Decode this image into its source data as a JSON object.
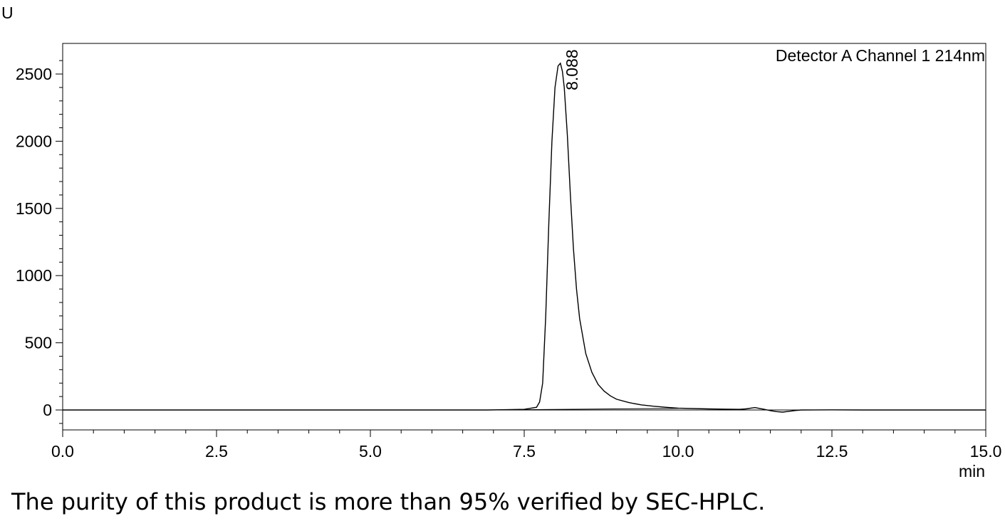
{
  "chart_data": {
    "type": "line",
    "title": "",
    "detector_label": "Detector A Channel 1 214nm",
    "ylabel": "U",
    "xlabel": "min",
    "xlim": [
      0,
      15
    ],
    "ylim": [
      -150,
      2700
    ],
    "x_ticks": [
      0,
      2.5,
      5,
      7.5,
      10,
      12.5,
      15
    ],
    "x_tick_labels": [
      "0.0",
      "2.5",
      "5.0",
      "7.5",
      "10.0",
      "12.5",
      "15.0"
    ],
    "y_ticks": [
      0,
      500,
      1000,
      1500,
      2000,
      2500
    ],
    "y_tick_labels": [
      "0",
      "500",
      "1000",
      "1500",
      "2000",
      "2500"
    ],
    "grid": false,
    "peak_labels": [
      {
        "x": 8.088,
        "y": 2580,
        "text": "8.088"
      }
    ],
    "series": [
      {
        "x": [
          0,
          6.9,
          7.2,
          7.5,
          7.7,
          7.75,
          7.8,
          7.85,
          7.9,
          7.95,
          8.0,
          8.05,
          8.088,
          8.12,
          8.15,
          8.2,
          8.25,
          8.3,
          8.35,
          8.4,
          8.5,
          8.6,
          8.7,
          8.8,
          8.9,
          9.0,
          9.2,
          9.4,
          9.6,
          9.8,
          10.0,
          10.5,
          11.0,
          11.1,
          11.2,
          11.25,
          11.3,
          11.4,
          11.5,
          11.6,
          11.7,
          11.8,
          11.9,
          12.0,
          12.5,
          13.0,
          15.0
        ],
        "y": [
          0,
          0,
          2,
          5,
          20,
          60,
          200,
          700,
          1400,
          2000,
          2400,
          2560,
          2580,
          2520,
          2400,
          2050,
          1600,
          1200,
          900,
          680,
          420,
          280,
          190,
          140,
          105,
          80,
          55,
          38,
          28,
          20,
          14,
          8,
          5,
          8,
          15,
          18,
          14,
          5,
          -5,
          -12,
          -16,
          -10,
          -4,
          0,
          1,
          0,
          0
        ]
      }
    ],
    "baseline": {
      "x": [
        7.0,
        10.0
      ],
      "y": [
        0,
        12
      ]
    }
  },
  "caption": "The purity of this product is more than 95% verified by SEC-HPLC."
}
